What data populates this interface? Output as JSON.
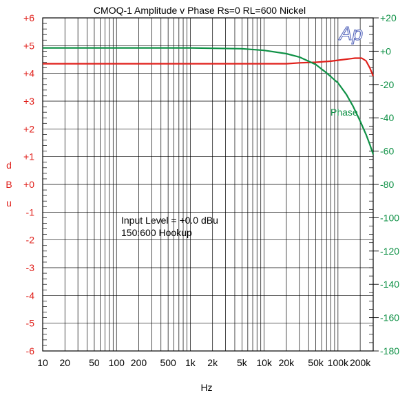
{
  "chart_data": {
    "type": "line",
    "title": "CMOQ-1   Amplitude v Phase Rs=0 RL=600 Nickel",
    "xlabel": "Hz",
    "ylabel_left": "dBu",
    "ylabel_left_chars": [
      "d",
      "B",
      "u"
    ],
    "x_scale": "log",
    "xlim": [
      10,
      300000
    ],
    "ylim_left": [
      -6,
      6
    ],
    "ylim_right": [
      -180,
      20
    ],
    "x_ticks": [
      {
        "v": 10,
        "label": "10"
      },
      {
        "v": 20,
        "label": "20"
      },
      {
        "v": 50,
        "label": "50"
      },
      {
        "v": 100,
        "label": "100"
      },
      {
        "v": 200,
        "label": "200"
      },
      {
        "v": 500,
        "label": "500"
      },
      {
        "v": 1000,
        "label": "1k"
      },
      {
        "v": 2000,
        "label": "2k"
      },
      {
        "v": 5000,
        "label": "5k"
      },
      {
        "v": 10000,
        "label": "10k"
      },
      {
        "v": 20000,
        "label": "20k"
      },
      {
        "v": 50000,
        "label": "50k"
      },
      {
        "v": 100000,
        "label": "100k"
      },
      {
        "v": 200000,
        "label": "200k"
      }
    ],
    "y_left_ticks": [
      {
        "v": 6,
        "label": "+6"
      },
      {
        "v": 5,
        "label": "+5"
      },
      {
        "v": 4,
        "label": "+4"
      },
      {
        "v": 3,
        "label": "+3"
      },
      {
        "v": 2,
        "label": "+2"
      },
      {
        "v": 1,
        "label": "+1"
      },
      {
        "v": 0,
        "label": "+0"
      },
      {
        "v": -1,
        "label": "-1"
      },
      {
        "v": -2,
        "label": "-2"
      },
      {
        "v": -3,
        "label": "-3"
      },
      {
        "v": -4,
        "label": "-4"
      },
      {
        "v": -5,
        "label": "-5"
      },
      {
        "v": -6,
        "label": "-6"
      }
    ],
    "y_right_ticks": [
      {
        "v": 20,
        "label": "+20"
      },
      {
        "v": 0,
        "label": "+0"
      },
      {
        "v": -20,
        "label": "-20"
      },
      {
        "v": -40,
        "label": "-40"
      },
      {
        "v": -60,
        "label": "-60"
      },
      {
        "v": -80,
        "label": "-80"
      },
      {
        "v": -100,
        "label": "-100"
      },
      {
        "v": -120,
        "label": "-120"
      },
      {
        "v": -140,
        "label": "-140"
      },
      {
        "v": -160,
        "label": "-160"
      },
      {
        "v": -180,
        "label": "-180"
      }
    ],
    "series": [
      {
        "name": "",
        "axis": "left",
        "color": "#e0201b",
        "points": [
          [
            10,
            4.35
          ],
          [
            100,
            4.35
          ],
          [
            1000,
            4.35
          ],
          [
            10000,
            4.35
          ],
          [
            20000,
            4.35
          ],
          [
            30000,
            4.38
          ],
          [
            50000,
            4.4
          ],
          [
            80000,
            4.44
          ],
          [
            120000,
            4.5
          ],
          [
            170000,
            4.55
          ],
          [
            210000,
            4.55
          ],
          [
            240000,
            4.45
          ],
          [
            270000,
            4.2
          ],
          [
            300000,
            3.9
          ]
        ]
      },
      {
        "name": "Phase",
        "axis": "right",
        "color": "#0f9146",
        "points": [
          [
            10,
            2
          ],
          [
            100,
            2
          ],
          [
            1000,
            2
          ],
          [
            5000,
            1.5
          ],
          [
            10000,
            0.5
          ],
          [
            20000,
            -1.5
          ],
          [
            30000,
            -3.5
          ],
          [
            50000,
            -8
          ],
          [
            70000,
            -13
          ],
          [
            100000,
            -19
          ],
          [
            130000,
            -26
          ],
          [
            160000,
            -33
          ],
          [
            200000,
            -42
          ],
          [
            240000,
            -50
          ],
          [
            270000,
            -56
          ],
          [
            300000,
            -62
          ]
        ]
      }
    ],
    "annotations": [
      "Input Level = +0.0 dBu",
      "150:600 Hookup"
    ],
    "phase_label": "Phase",
    "logo": "Ap",
    "colors": {
      "amplitude": "#e0201b",
      "phase": "#0f9146",
      "grid": "#000000"
    }
  }
}
